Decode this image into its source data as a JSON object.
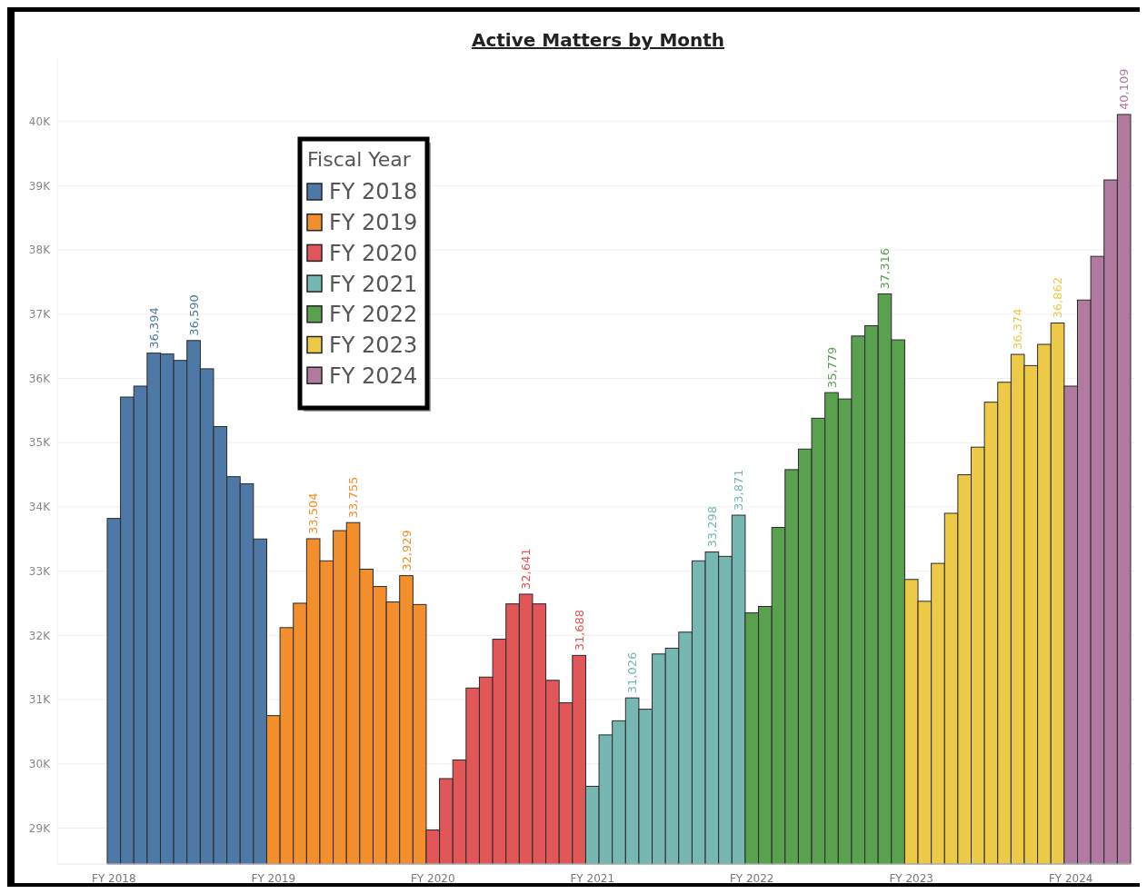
{
  "chart_data": {
    "type": "bar",
    "title": "Active Matters by Month",
    "legend_title": "Fiscal Year",
    "legend": "top left",
    "grid": "y",
    "categories": [
      "FY 2018",
      null,
      null,
      null,
      null,
      null,
      null,
      null,
      null,
      null,
      null,
      null,
      "FY 2019",
      null,
      null,
      null,
      null,
      null,
      null,
      null,
      null,
      null,
      null,
      null,
      "FY 2020",
      null,
      null,
      null,
      null,
      null,
      null,
      null,
      null,
      null,
      null,
      null,
      "FY 2021",
      null,
      null,
      null,
      null,
      null,
      null,
      null,
      null,
      null,
      null,
      null,
      "FY 2022",
      null,
      null,
      null,
      null,
      null,
      null,
      null,
      null,
      null,
      null,
      null,
      "FY 2023",
      null,
      null,
      null,
      null,
      null,
      null,
      null,
      null,
      null,
      null,
      null,
      "FY 2024",
      null,
      null,
      null,
      null
    ],
    "ylim": [
      28440,
      41000
    ],
    "yticks": [
      {
        "value": 29000,
        "label": "29K"
      },
      {
        "value": 30000,
        "label": "30K"
      },
      {
        "value": 31000,
        "label": "31K"
      },
      {
        "value": 32000,
        "label": "32K"
      },
      {
        "value": 33000,
        "label": "33K"
      },
      {
        "value": 34000,
        "label": "34K"
      },
      {
        "value": 35000,
        "label": "35K"
      },
      {
        "value": 36000,
        "label": "36K"
      },
      {
        "value": 37000,
        "label": "37K"
      },
      {
        "value": 38000,
        "label": "38K"
      },
      {
        "value": 39000,
        "label": "39K"
      },
      {
        "value": 40000,
        "label": "40K"
      }
    ],
    "series": [
      {
        "name": "FY 2018",
        "color": "#4e79a7",
        "values": [
          33820,
          35710,
          35880,
          36394,
          36380,
          36280,
          36590,
          36150,
          35250,
          34470,
          34360,
          33500,
          null,
          null,
          null,
          null,
          null,
          null,
          null,
          null,
          null,
          null,
          null,
          null,
          null,
          null,
          null,
          null,
          null,
          null,
          null,
          null,
          null,
          null,
          null,
          null,
          null,
          null,
          null,
          null,
          null,
          null,
          null,
          null,
          null,
          null,
          null,
          null,
          null,
          null,
          null,
          null,
          null,
          null,
          null,
          null,
          null,
          null,
          null,
          null,
          null,
          null,
          null,
          null,
          null,
          null,
          null,
          null,
          null,
          null,
          null,
          null,
          null,
          null,
          null,
          null,
          null
        ],
        "value_labels": [
          null,
          null,
          null,
          "36,394",
          null,
          null,
          "36,590",
          null,
          null,
          null,
          null,
          null,
          null,
          null,
          null,
          null,
          null,
          null,
          null,
          null,
          null,
          null,
          null,
          null,
          null,
          null,
          null,
          null,
          null,
          null,
          null,
          null,
          null,
          null,
          null,
          null,
          null,
          null,
          null,
          null,
          null,
          null,
          null,
          null,
          null,
          null,
          null,
          null,
          null,
          null,
          null,
          null,
          null,
          null,
          null,
          null,
          null,
          null,
          null,
          null,
          null,
          null,
          null,
          null,
          null,
          null,
          null,
          null,
          null,
          null,
          null,
          null,
          null,
          null,
          null,
          null,
          null
        ]
      },
      {
        "name": "FY 2019",
        "color": "#f28e2b",
        "values": [
          null,
          null,
          null,
          null,
          null,
          null,
          null,
          null,
          null,
          null,
          null,
          null,
          30750,
          32120,
          32500,
          33504,
          33160,
          33630,
          33755,
          33030,
          32760,
          32520,
          32929,
          32480,
          null,
          null,
          null,
          null,
          null,
          null,
          null,
          null,
          null,
          null,
          null,
          null,
          null,
          null,
          null,
          null,
          null,
          null,
          null,
          null,
          null,
          null,
          null,
          null,
          null,
          null,
          null,
          null,
          null,
          null,
          null,
          null,
          null,
          null,
          null,
          null,
          null,
          null,
          null,
          null,
          null,
          null,
          null,
          null,
          null,
          null,
          null,
          null,
          null,
          null,
          null,
          null,
          null
        ],
        "value_labels": [
          null,
          null,
          null,
          null,
          null,
          null,
          null,
          null,
          null,
          null,
          null,
          null,
          null,
          null,
          null,
          "33,504",
          null,
          null,
          "33,755",
          null,
          null,
          null,
          "32,929",
          null,
          null,
          null,
          null,
          null,
          null,
          null,
          null,
          null,
          null,
          null,
          null,
          null,
          null,
          null,
          null,
          null,
          null,
          null,
          null,
          null,
          null,
          null,
          null,
          null,
          null,
          null,
          null,
          null,
          null,
          null,
          null,
          null,
          null,
          null,
          null,
          null,
          null,
          null,
          null,
          null,
          null,
          null,
          null,
          null,
          null,
          null,
          null,
          null,
          null,
          null,
          null,
          null,
          null
        ]
      },
      {
        "name": "FY 2020",
        "color": "#e15759",
        "values": [
          null,
          null,
          null,
          null,
          null,
          null,
          null,
          null,
          null,
          null,
          null,
          null,
          null,
          null,
          null,
          null,
          null,
          null,
          null,
          null,
          null,
          null,
          null,
          null,
          28970,
          29770,
          30060,
          31180,
          31350,
          31940,
          32490,
          32641,
          32490,
          31300,
          30950,
          31688,
          null,
          null,
          null,
          null,
          null,
          null,
          null,
          null,
          null,
          null,
          null,
          null,
          null,
          null,
          null,
          null,
          null,
          null,
          null,
          null,
          null,
          null,
          null,
          null,
          null,
          null,
          null,
          null,
          null,
          null,
          null,
          null,
          null,
          null,
          null,
          null,
          null,
          null,
          null,
          null,
          null
        ],
        "value_labels": [
          null,
          null,
          null,
          null,
          null,
          null,
          null,
          null,
          null,
          null,
          null,
          null,
          null,
          null,
          null,
          null,
          null,
          null,
          null,
          null,
          null,
          null,
          null,
          null,
          null,
          null,
          null,
          null,
          null,
          null,
          null,
          "32,641",
          null,
          null,
          null,
          "31,688",
          null,
          null,
          null,
          null,
          null,
          null,
          null,
          null,
          null,
          null,
          null,
          null,
          null,
          null,
          null,
          null,
          null,
          null,
          null,
          null,
          null,
          null,
          null,
          null,
          null,
          null,
          null,
          null,
          null,
          null,
          null,
          null,
          null,
          null,
          null,
          null,
          null,
          null,
          null,
          null,
          null
        ]
      },
      {
        "name": "FY 2021",
        "color": "#76b7b2",
        "values": [
          null,
          null,
          null,
          null,
          null,
          null,
          null,
          null,
          null,
          null,
          null,
          null,
          null,
          null,
          null,
          null,
          null,
          null,
          null,
          null,
          null,
          null,
          null,
          null,
          null,
          null,
          null,
          null,
          null,
          null,
          null,
          null,
          null,
          null,
          null,
          null,
          29650,
          30450,
          30670,
          31026,
          30850,
          31710,
          31800,
          32050,
          33160,
          33298,
          33230,
          33871,
          null,
          null,
          null,
          null,
          null,
          null,
          null,
          null,
          null,
          null,
          null,
          null,
          null,
          null,
          null,
          null,
          null,
          null,
          null,
          null,
          null,
          null,
          null,
          null,
          null,
          null,
          null,
          null,
          null
        ],
        "value_labels": [
          null,
          null,
          null,
          null,
          null,
          null,
          null,
          null,
          null,
          null,
          null,
          null,
          null,
          null,
          null,
          null,
          null,
          null,
          null,
          null,
          null,
          null,
          null,
          null,
          null,
          null,
          null,
          null,
          null,
          null,
          null,
          null,
          null,
          null,
          null,
          null,
          null,
          null,
          null,
          "31,026",
          null,
          null,
          null,
          null,
          null,
          "33,298",
          null,
          "33,871",
          null,
          null,
          null,
          null,
          null,
          null,
          null,
          null,
          null,
          null,
          null,
          null,
          null,
          null,
          null,
          null,
          null,
          null,
          null,
          null,
          null,
          null,
          null,
          null,
          null,
          null,
          null,
          null,
          null
        ]
      },
      {
        "name": "FY 2022",
        "color": "#59a14f",
        "values": [
          null,
          null,
          null,
          null,
          null,
          null,
          null,
          null,
          null,
          null,
          null,
          null,
          null,
          null,
          null,
          null,
          null,
          null,
          null,
          null,
          null,
          null,
          null,
          null,
          null,
          null,
          null,
          null,
          null,
          null,
          null,
          null,
          null,
          null,
          null,
          null,
          null,
          null,
          null,
          null,
          null,
          null,
          null,
          null,
          null,
          null,
          null,
          null,
          32350,
          32450,
          33680,
          34580,
          34900,
          35380,
          35779,
          35680,
          36660,
          36820,
          37316,
          36600,
          null,
          null,
          null,
          null,
          null,
          null,
          null,
          null,
          null,
          null,
          null,
          null,
          null,
          null,
          null,
          null,
          null
        ],
        "value_labels": [
          null,
          null,
          null,
          null,
          null,
          null,
          null,
          null,
          null,
          null,
          null,
          null,
          null,
          null,
          null,
          null,
          null,
          null,
          null,
          null,
          null,
          null,
          null,
          null,
          null,
          null,
          null,
          null,
          null,
          null,
          null,
          null,
          null,
          null,
          null,
          null,
          null,
          null,
          null,
          null,
          null,
          null,
          null,
          null,
          null,
          null,
          null,
          null,
          null,
          null,
          null,
          null,
          null,
          null,
          "35,779",
          null,
          null,
          null,
          "37,316",
          null,
          null,
          null,
          null,
          null,
          null,
          null,
          null,
          null,
          null,
          null,
          null,
          null,
          null,
          null,
          null,
          null,
          null
        ]
      },
      {
        "name": "FY 2023",
        "color": "#edc948",
        "values": [
          null,
          null,
          null,
          null,
          null,
          null,
          null,
          null,
          null,
          null,
          null,
          null,
          null,
          null,
          null,
          null,
          null,
          null,
          null,
          null,
          null,
          null,
          null,
          null,
          null,
          null,
          null,
          null,
          null,
          null,
          null,
          null,
          null,
          null,
          null,
          null,
          null,
          null,
          null,
          null,
          null,
          null,
          null,
          null,
          null,
          null,
          null,
          null,
          null,
          null,
          null,
          null,
          null,
          null,
          null,
          null,
          null,
          null,
          null,
          null,
          32870,
          32530,
          33120,
          33900,
          34500,
          34930,
          35630,
          35940,
          36374,
          36200,
          36530,
          36862,
          null,
          null,
          null,
          null,
          null
        ],
        "value_labels": [
          null,
          null,
          null,
          null,
          null,
          null,
          null,
          null,
          null,
          null,
          null,
          null,
          null,
          null,
          null,
          null,
          null,
          null,
          null,
          null,
          null,
          null,
          null,
          null,
          null,
          null,
          null,
          null,
          null,
          null,
          null,
          null,
          null,
          null,
          null,
          null,
          null,
          null,
          null,
          null,
          null,
          null,
          null,
          null,
          null,
          null,
          null,
          null,
          null,
          null,
          null,
          null,
          null,
          null,
          null,
          null,
          null,
          null,
          null,
          null,
          null,
          null,
          null,
          null,
          null,
          null,
          null,
          null,
          "36,374",
          null,
          null,
          "36,862",
          null,
          null,
          null,
          null,
          null
        ]
      },
      {
        "name": "FY 2024",
        "color": "#b07aa1",
        "values": [
          null,
          null,
          null,
          null,
          null,
          null,
          null,
          null,
          null,
          null,
          null,
          null,
          null,
          null,
          null,
          null,
          null,
          null,
          null,
          null,
          null,
          null,
          null,
          null,
          null,
          null,
          null,
          null,
          null,
          null,
          null,
          null,
          null,
          null,
          null,
          null,
          null,
          null,
          null,
          null,
          null,
          null,
          null,
          null,
          null,
          null,
          null,
          null,
          null,
          null,
          null,
          null,
          null,
          null,
          null,
          null,
          null,
          null,
          null,
          null,
          null,
          null,
          null,
          null,
          null,
          null,
          null,
          null,
          null,
          null,
          null,
          null,
          35880,
          37220,
          37900,
          39090,
          40109
        ],
        "value_labels": [
          null,
          null,
          null,
          null,
          null,
          null,
          null,
          null,
          null,
          null,
          null,
          null,
          null,
          null,
          null,
          null,
          null,
          null,
          null,
          null,
          null,
          null,
          null,
          null,
          null,
          null,
          null,
          null,
          null,
          null,
          null,
          null,
          null,
          null,
          null,
          null,
          null,
          null,
          null,
          null,
          null,
          null,
          null,
          null,
          null,
          null,
          null,
          null,
          null,
          null,
          null,
          null,
          null,
          null,
          null,
          null,
          null,
          null,
          null,
          null,
          null,
          null,
          null,
          null,
          null,
          null,
          null,
          null,
          null,
          null,
          null,
          null,
          null,
          null,
          null,
          null,
          "40,109"
        ]
      }
    ]
  }
}
